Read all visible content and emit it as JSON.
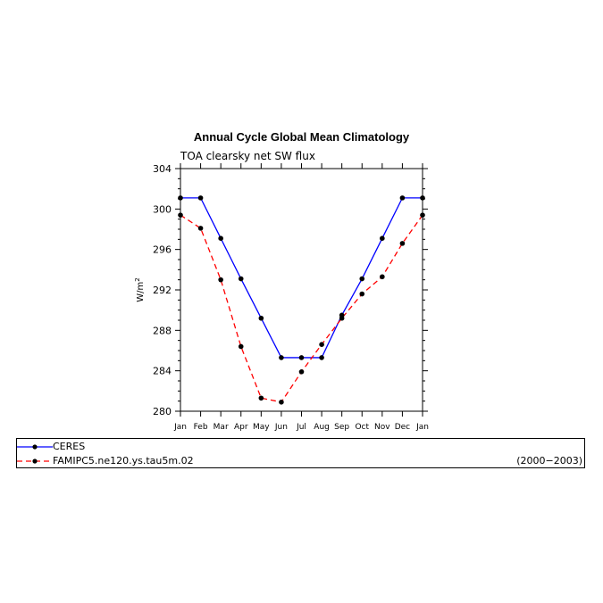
{
  "chart_data": {
    "type": "line",
    "title": "Annual Cycle Global Mean Climatology",
    "subtitle": "TOA clearsky net SW flux",
    "ylabel": "W/m",
    "ylabel_sup": "2",
    "ylim": [
      280,
      304
    ],
    "yticks": [
      280,
      284,
      288,
      292,
      296,
      300,
      304
    ],
    "categories": [
      "Jan",
      "Feb",
      "Mar",
      "Apr",
      "May",
      "Jun",
      "Jul",
      "Aug",
      "Sep",
      "Oct",
      "Nov",
      "Dec",
      "Jan"
    ],
    "series": [
      {
        "name": "CERES",
        "color": "#0000ff",
        "dash": "solid",
        "values": [
          301.1,
          301.1,
          297.1,
          293.1,
          289.2,
          285.3,
          285.3,
          285.3,
          289.5,
          293.1,
          297.1,
          301.1,
          301.1
        ]
      },
      {
        "name": "FAMIPC5.ne120.ys.tau5m.02",
        "color": "#ff0000",
        "dash": "dashed",
        "values": [
          299.4,
          298.1,
          293.0,
          286.4,
          281.3,
          280.9,
          283.9,
          286.6,
          289.2,
          291.6,
          293.3,
          296.6,
          299.4
        ]
      }
    ],
    "legend": {
      "placement": "bottom",
      "period": "(2000−2003)"
    }
  }
}
